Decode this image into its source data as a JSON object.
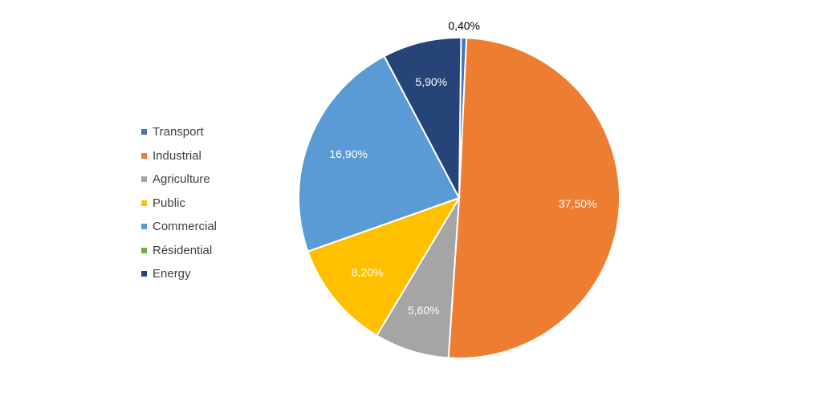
{
  "chart_data": {
    "type": "pie",
    "slices": [
      {
        "name": "Transport",
        "value": 0.4,
        "label": "0,40%",
        "color": "#4472C4",
        "label_color": "#000000"
      },
      {
        "name": "Industrial",
        "value": 37.5,
        "label": "37,50%",
        "color": "#ED7D31",
        "label_color": "#ffffff"
      },
      {
        "name": "Agriculture",
        "value": 5.6,
        "label": "5,60%",
        "color": "#A5A5A5",
        "label_color": "#ffffff"
      },
      {
        "name": "Public",
        "value": 8.2,
        "label": "8,20%",
        "color": "#FFC000",
        "label_color": "#ffffff"
      },
      {
        "name": "Commercial",
        "value": 16.9,
        "label": "16,90%",
        "color": "#5B9BD5",
        "label_color": "#ffffff"
      },
      {
        "name": "Résidential",
        "value": 0,
        "label": "",
        "color": "#70AD47",
        "label_color": "#ffffff"
      },
      {
        "name": "Energy",
        "value": 5.9,
        "label": "5,90%",
        "color": "#264478",
        "label_color": "#ffffff"
      }
    ],
    "legend_position": "left"
  },
  "legend": {
    "items": [
      {
        "label": "Transport",
        "color": "#4472C4"
      },
      {
        "label": "Industrial",
        "color": "#ED7D31"
      },
      {
        "label": "Agriculture",
        "color": "#A5A5A5"
      },
      {
        "label": "Public",
        "color": "#FFC000"
      },
      {
        "label": "Commercial",
        "color": "#5B9BD5"
      },
      {
        "label": "Résidential",
        "color": "#70AD47"
      },
      {
        "label": "Energy",
        "color": "#264478"
      }
    ]
  }
}
